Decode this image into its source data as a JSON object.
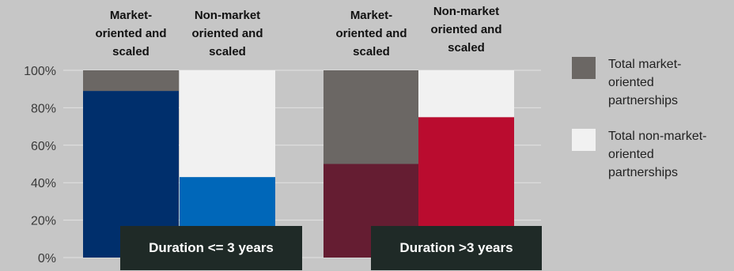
{
  "chart_data": {
    "type": "bar",
    "stacked": true,
    "categories": [
      "Market-oriented and scaled",
      "Non-market oriented and scaled",
      "Market-oriented and scaled",
      "Non-market oriented and scaled"
    ],
    "category_lines": [
      [
        "Market-",
        "oriented and",
        "scaled"
      ],
      [
        "Non-market",
        "oriented and",
        "scaled"
      ],
      [
        "Market-",
        "oriented and",
        "scaled"
      ],
      [
        "Non-market",
        "oriented and",
        "scaled"
      ]
    ],
    "groups": [
      {
        "label": "Duration <= 3 years",
        "category_indices": [
          0,
          1
        ]
      },
      {
        "label": "Duration >3 years",
        "category_indices": [
          2,
          3
        ]
      }
    ],
    "series": [
      {
        "name": "",
        "values": [
          89,
          43,
          50,
          75
        ],
        "colors": [
          "#002f6c",
          "#0067b9",
          "#651d32",
          "#ba0c2f"
        ]
      },
      {
        "name": "Total market-oriented partnerships",
        "values": [
          11,
          0,
          50,
          0
        ],
        "color": "#6b6764"
      },
      {
        "name": "Total non-market-oriented partnerships",
        "values": [
          0,
          57,
          0,
          25
        ],
        "color": "#f1f1f1"
      }
    ],
    "yticks": [
      "0%",
      "20%",
      "40%",
      "60%",
      "80%",
      "100%"
    ],
    "ylim": [
      0,
      100
    ],
    "grid": true,
    "legend_position": "right"
  },
  "legend": {
    "items": [
      {
        "label": "Total market-oriented partnerships",
        "color": "#6b6764"
      },
      {
        "label": "Total non-market-oriented partnerships",
        "color": "#f1f1f1"
      }
    ]
  },
  "colors": {
    "background": "#c6c6c6",
    "gridline": "#e2e2e2",
    "banner": "#1f2a27"
  }
}
